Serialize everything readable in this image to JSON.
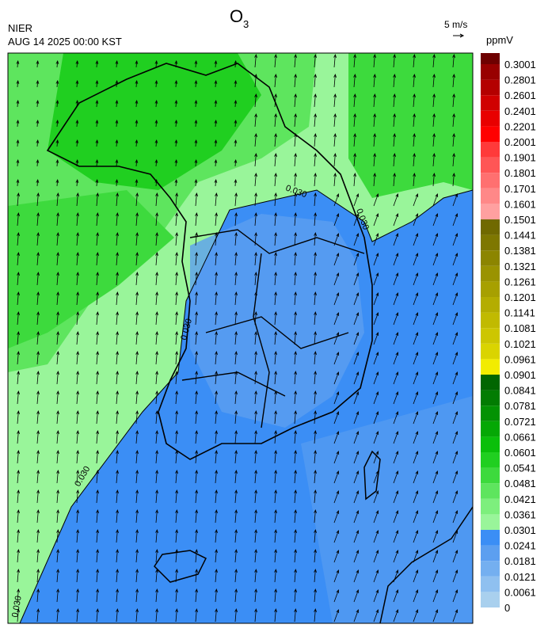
{
  "header": {
    "source": "NIER",
    "time": "AUG 14 2025 00:00 KST",
    "title": "O",
    "title_subscript": "3",
    "vector_scale": "5 m/s",
    "unit": "ppmV"
  },
  "colorbar": {
    "levels": [
      0,
      0.0061,
      0.0121,
      0.0181,
      0.0241,
      0.0301,
      0.0361,
      0.0421,
      0.0481,
      0.0541,
      0.0601,
      0.0661,
      0.0721,
      0.0781,
      0.0841,
      0.0901,
      0.0961,
      0.1021,
      0.1081,
      0.1141,
      0.1201,
      0.1261,
      0.1321,
      0.1381,
      0.1441,
      0.1501,
      0.1601,
      0.1701,
      0.1801,
      0.1901,
      0.2001,
      0.2201,
      0.2401,
      0.2601,
      0.2801,
      0.3001
    ],
    "colors": [
      "#a9d0ee",
      "#8fc0f0",
      "#74aff0",
      "#5c9ff0",
      "#3b8ef5",
      "#99f59a",
      "#7def7d",
      "#5ee55e",
      "#3dda3d",
      "#20cf20",
      "#0abf0a",
      "#05a805",
      "#039203",
      "#027c02",
      "#016601",
      "#f2ec00",
      "#dad400",
      "#cdc600",
      "#c1ba00",
      "#b4ad00",
      "#a7a000",
      "#9a9300",
      "#8c8500",
      "#7e7700",
      "#706900",
      "#ffa0a0",
      "#ff8888",
      "#ff7070",
      "#ff5656",
      "#ff3a3a",
      "#ff0000",
      "#e80000",
      "#d00000",
      "#b40000",
      "#980000",
      "#6e0000"
    ]
  },
  "contour_label": "0.030"
}
